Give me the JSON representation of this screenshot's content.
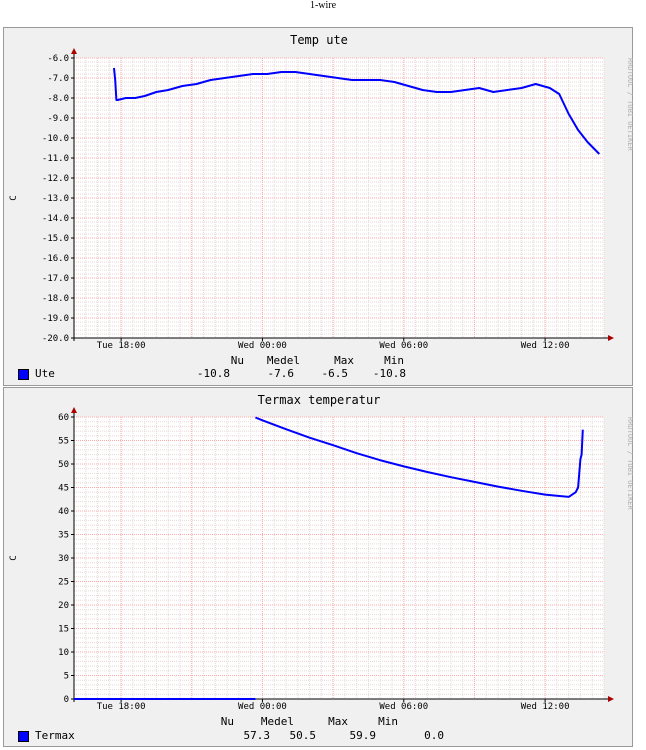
{
  "header": {
    "title": "1-wire"
  },
  "watermark": "RRDTOOL / TOBI OETIKER",
  "stats_headers": {
    "now": "Nu",
    "avg": "Medel",
    "max": "Max",
    "min": "Min"
  },
  "colors": {
    "line": "#0000ff",
    "grid_major": "#ffaaaa",
    "grid_minor": "#e8d8d8",
    "canvas": "#ffffff",
    "frame": "#f0f0f0",
    "arrow": "#aa0000"
  },
  "chart_data": [
    {
      "type": "line",
      "title": "Temp ute",
      "ylabel": "C",
      "xlabel": "",
      "x_unit": "hours since Tue 16:00",
      "x_range": [
        0,
        22.5
      ],
      "xticks": [
        {
          "label": "Tue 18:00",
          "x": 2
        },
        {
          "label": "Wed 00:00",
          "x": 8
        },
        {
          "label": "Wed 06:00",
          "x": 14
        },
        {
          "label": "Wed 12:00",
          "x": 20
        }
      ],
      "ylim": [
        -20,
        -6
      ],
      "yticks": [
        "-6.0",
        "-7.0",
        "-8.0",
        "-9.0",
        "-10.0",
        "-11.0",
        "-12.0",
        "-13.0",
        "-14.0",
        "-15.0",
        "-16.0",
        "-17.0",
        "-18.0",
        "-19.0",
        "-20.0"
      ],
      "grid": true,
      "series": [
        {
          "name": "Ute",
          "x": [
            1.7,
            1.75,
            1.8,
            1.85,
            2.2,
            2.6,
            3.0,
            3.5,
            4.0,
            4.6,
            5.2,
            5.8,
            6.4,
            7.0,
            7.6,
            8.2,
            8.8,
            9.4,
            10.0,
            10.6,
            11.2,
            11.8,
            12.4,
            13.0,
            13.6,
            14.2,
            14.8,
            15.4,
            16.0,
            16.6,
            17.2,
            17.8,
            18.4,
            19.0,
            19.6,
            20.2,
            20.6,
            21.0,
            21.4,
            21.8,
            22.3
          ],
          "y": [
            -6.5,
            -7.1,
            -8.1,
            -8.1,
            -8.0,
            -8.0,
            -7.9,
            -7.7,
            -7.6,
            -7.4,
            -7.3,
            -7.1,
            -7.0,
            -6.9,
            -6.8,
            -6.8,
            -6.7,
            -6.7,
            -6.8,
            -6.9,
            -7.0,
            -7.1,
            -7.1,
            -7.1,
            -7.2,
            -7.4,
            -7.6,
            -7.7,
            -7.7,
            -7.6,
            -7.5,
            -7.7,
            -7.6,
            -7.5,
            -7.3,
            -7.5,
            -7.8,
            -8.8,
            -9.6,
            -10.2,
            -10.8
          ]
        }
      ],
      "stats": {
        "now": "-10.8",
        "avg": "-7.6",
        "max": "-6.5",
        "min": "-10.8"
      }
    },
    {
      "type": "line",
      "title": "Termax temperatur",
      "ylabel": "C",
      "xlabel": "",
      "x_unit": "hours since Tue 16:00",
      "x_range": [
        0,
        22.5
      ],
      "xticks": [
        {
          "label": "Tue 18:00",
          "x": 2
        },
        {
          "label": "Wed 00:00",
          "x": 8
        },
        {
          "label": "Wed 06:00",
          "x": 14
        },
        {
          "label": "Wed 12:00",
          "x": 20
        }
      ],
      "ylim": [
        0,
        60
      ],
      "yticks": [
        "0",
        "5",
        "10",
        "15",
        "20",
        "25",
        "30",
        "35",
        "40",
        "45",
        "50",
        "55",
        "60"
      ],
      "grid": true,
      "series": [
        {
          "name": "Termax",
          "x": [
            0,
            7.7
          ],
          "y": [
            0,
            0
          ]
        },
        {
          "name": "Termax",
          "x": [
            7.7,
            8.0,
            9.0,
            10.0,
            11.0,
            12.0,
            13.0,
            14.0,
            15.0,
            16.0,
            17.0,
            18.0,
            19.0,
            20.0,
            21.0,
            21.3,
            21.4,
            21.5,
            21.55,
            21.6
          ],
          "y": [
            59.9,
            59.3,
            57.4,
            55.6,
            54.0,
            52.3,
            50.8,
            49.5,
            48.3,
            47.2,
            46.2,
            45.2,
            44.3,
            43.5,
            43.0,
            44.0,
            45.0,
            51.0,
            52.0,
            57.3
          ]
        }
      ],
      "stats": {
        "now": "57.3",
        "avg": "50.5",
        "max": "59.9",
        "min": "0.0"
      }
    }
  ]
}
